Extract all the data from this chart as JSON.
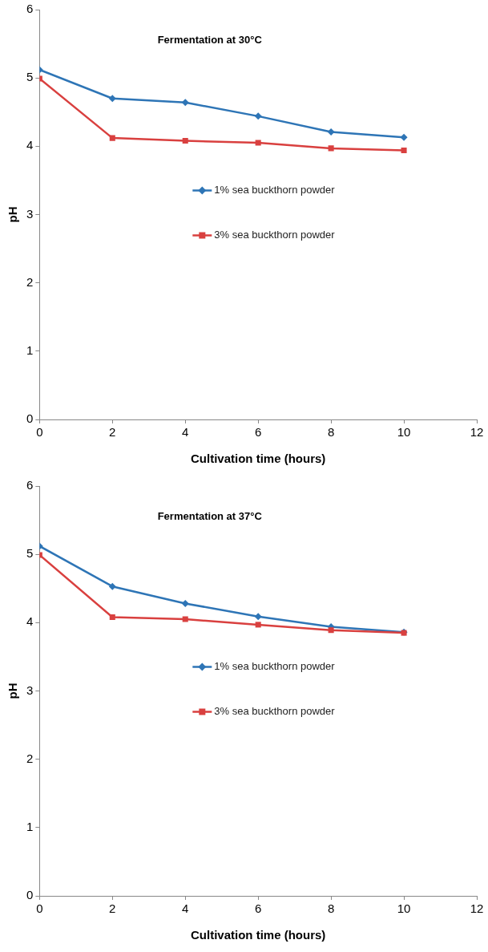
{
  "chart_data": [
    {
      "type": "line",
      "title": "Fermentation at 30°C",
      "xlabel": "Cultivation time (hours)",
      "ylabel": "pH",
      "x": [
        0,
        2,
        4,
        6,
        8,
        10
      ],
      "series": [
        {
          "name": "1% sea buckthorn powder",
          "color": "#2e75b6",
          "marker": "diamond",
          "values": [
            5.12,
            4.7,
            4.64,
            4.44,
            4.21,
            4.13
          ]
        },
        {
          "name": "3% sea buckthorn powder",
          "color": "#d9403f",
          "marker": "square",
          "values": [
            4.99,
            4.12,
            4.08,
            4.05,
            3.97,
            3.94
          ]
        }
      ],
      "xlim": [
        0,
        12
      ],
      "xticks": [
        0,
        2,
        4,
        6,
        8,
        10,
        12
      ],
      "ylim": [
        0,
        6
      ],
      "yticks": [
        0,
        1,
        2,
        3,
        4,
        5,
        6
      ],
      "grid": false,
      "legend": "center",
      "line_style": "solid"
    },
    {
      "type": "line",
      "title": "Fermentation at 37°C",
      "xlabel": "Cultivation time (hours)",
      "ylabel": "pH",
      "x": [
        0,
        2,
        4,
        6,
        8,
        10
      ],
      "series": [
        {
          "name": "1% sea buckthorn powder",
          "color": "#2e75b6",
          "marker": "diamond",
          "values": [
            5.12,
            4.53,
            4.28,
            4.09,
            3.94,
            3.86
          ]
        },
        {
          "name": "3% sea buckthorn powder",
          "color": "#d9403f",
          "marker": "square",
          "values": [
            4.99,
            4.08,
            4.05,
            3.97,
            3.89,
            3.85
          ]
        }
      ],
      "xlim": [
        0,
        12
      ],
      "xticks": [
        0,
        2,
        4,
        6,
        8,
        10,
        12
      ],
      "ylim": [
        0,
        6
      ],
      "yticks": [
        0,
        1,
        2,
        3,
        4,
        5,
        6
      ],
      "grid": false,
      "legend": "center",
      "line_style": "solid"
    }
  ]
}
